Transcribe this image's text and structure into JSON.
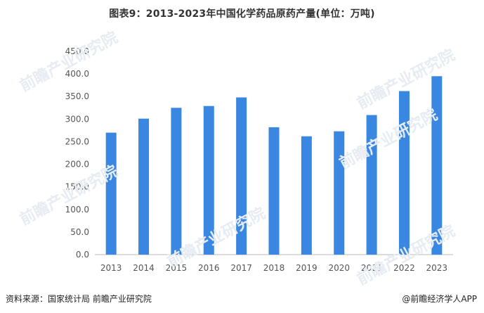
{
  "title": "图表9：2013-2023年中国化学药品原药产量(单位：万吨)",
  "watermark_text": "前瞻产业研究院",
  "footer": {
    "source": "资料来源：国家统计局 前瞻产业研究院",
    "copyright": "@前瞻经济学人APP"
  },
  "colors": {
    "bar": "#3a87e2",
    "axis": "#b8b8b8",
    "tick_text": "#555555"
  },
  "chart_data": {
    "type": "bar",
    "title": "图表9：2013-2023年中国化学药品原药产量(单位：万吨)",
    "categories": [
      "2013",
      "2014",
      "2015",
      "2016",
      "2017",
      "2018",
      "2019",
      "2020",
      "2021",
      "2022",
      "2023"
    ],
    "values": [
      270,
      301,
      325,
      329,
      348,
      282,
      262,
      273,
      309,
      362,
      395
    ],
    "ylim": [
      0,
      450
    ],
    "yticks": [
      "0.0",
      "50.0",
      "100.0",
      "150.0",
      "200.0",
      "250.0",
      "300.0",
      "350.0",
      "400.0",
      "450.0"
    ],
    "grid": false,
    "legend": "none"
  }
}
